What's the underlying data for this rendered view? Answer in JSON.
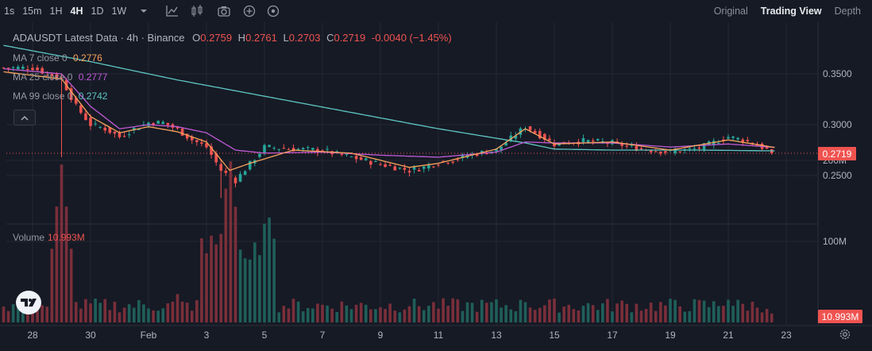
{
  "toolbar": {
    "timeframes": [
      "1s",
      "15m",
      "1H",
      "4H",
      "1D",
      "1W"
    ],
    "active_timeframe": "4H",
    "icons": [
      "chevron-down-icon",
      "line-chart-icon",
      "candles-icon",
      "camera-icon",
      "plus-circle-icon",
      "indicator-icon"
    ],
    "views": [
      "Original",
      "Trading View",
      "Depth"
    ],
    "active_view": "Trading View"
  },
  "legend": {
    "title": "ADAUSDT Latest Data · 4h · Binance",
    "open_label": "O",
    "open": "0.2759",
    "high_label": "H",
    "high": "0.2761",
    "low_label": "L",
    "low": "0.2703",
    "close_label": "C",
    "close": "0.2719",
    "change": "-0.0040 (−1.45%)"
  },
  "moving_averages": [
    {
      "label": "MA 7 close 0",
      "value": "0.2776",
      "color": "#f7a35c"
    },
    {
      "label": "MA 25 close 0",
      "value": "0.2777",
      "color": "#c05bd6"
    },
    {
      "label": "MA 99 close 0",
      "value": "0.2742",
      "color": "#5ec5c2"
    }
  ],
  "volume_legend": {
    "label": "Volume",
    "value": "10.993M"
  },
  "price_tags": {
    "last_price": "0.2719",
    "last_volume": "10.993M"
  },
  "colors": {
    "up": "#26a69a",
    "down": "#ef5350",
    "background": "#161a25",
    "grid": "#242834"
  },
  "chart_data": {
    "type": "candlestick",
    "price_axis": {
      "ticks": [
        "0.3500",
        "0.3000",
        "0.2500"
      ],
      "values": [
        0.35,
        0.3,
        0.25
      ]
    },
    "volume_axis": {
      "ticks": [
        "200M",
        "100M"
      ],
      "values": [
        200,
        100
      ]
    },
    "x_ticks": [
      "28",
      "30",
      "Feb",
      "3",
      "5",
      "7",
      "9",
      "11",
      "13",
      "15",
      "17",
      "19",
      "21",
      "23"
    ],
    "last_price": 0.2719,
    "last_volume_millions": 10.993,
    "ohlc_keypoints": {
      "comment": "approximate price path read from chart, in day-index units (0 = Jan 27)",
      "t": [
        0,
        1,
        2,
        2.5,
        3,
        3.5,
        4,
        4.5,
        5,
        5.5,
        6,
        6.5,
        7,
        7.5,
        8,
        9,
        10,
        11,
        11.5,
        12,
        13,
        14,
        14.5,
        15,
        15.5,
        16,
        17,
        18,
        19,
        20,
        21,
        22,
        23,
        24,
        25,
        25.5,
        26,
        26.6
      ],
      "price": [
        0.356,
        0.356,
        0.345,
        0.318,
        0.3,
        0.296,
        0.288,
        0.296,
        0.302,
        0.302,
        0.295,
        0.285,
        0.278,
        0.255,
        0.245,
        0.278,
        0.276,
        0.275,
        0.271,
        0.268,
        0.261,
        0.255,
        0.258,
        0.263,
        0.265,
        0.27,
        0.275,
        0.298,
        0.281,
        0.284,
        0.282,
        0.276,
        0.273,
        0.277,
        0.288,
        0.285,
        0.28,
        0.2719
      ]
    },
    "ma7": {
      "t": [
        0,
        2,
        3,
        4,
        5,
        6,
        7,
        7.8,
        8.5,
        10,
        12,
        14,
        15,
        17,
        18,
        19,
        21,
        23,
        25,
        26.6
      ],
      "price": [
        0.352,
        0.345,
        0.308,
        0.292,
        0.298,
        0.293,
        0.283,
        0.255,
        0.262,
        0.275,
        0.272,
        0.258,
        0.262,
        0.276,
        0.296,
        0.281,
        0.283,
        0.275,
        0.285,
        0.2776
      ]
    },
    "ma25": {
      "t": [
        0,
        2,
        3,
        4,
        5,
        6,
        7,
        8,
        9,
        11,
        13,
        15,
        17,
        18,
        19,
        21,
        23,
        25,
        26.6
      ],
      "price": [
        0.355,
        0.35,
        0.318,
        0.296,
        0.3,
        0.298,
        0.292,
        0.275,
        0.272,
        0.273,
        0.27,
        0.268,
        0.273,
        0.283,
        0.282,
        0.282,
        0.278,
        0.281,
        0.2777
      ]
    },
    "ma99": {
      "t": [
        0,
        3,
        6,
        9,
        12,
        15,
        18,
        19,
        21,
        24,
        26.6
      ],
      "price": [
        0.378,
        0.362,
        0.344,
        0.328,
        0.312,
        0.296,
        0.282,
        0.276,
        0.275,
        0.275,
        0.2742
      ]
    },
    "volume_millions_peaks": [
      {
        "t": 2.0,
        "v": 195
      },
      {
        "t": 6.0,
        "v": 35
      },
      {
        "t": 7.5,
        "v": 80
      },
      {
        "t": 7.8,
        "v": 210
      },
      {
        "t": 8.2,
        "v": 95
      },
      {
        "t": 9.1,
        "v": 145
      },
      {
        "t": 14.0,
        "v": 20
      },
      {
        "t": 18.0,
        "v": 25
      },
      {
        "t": 25.0,
        "v": 28
      }
    ]
  }
}
